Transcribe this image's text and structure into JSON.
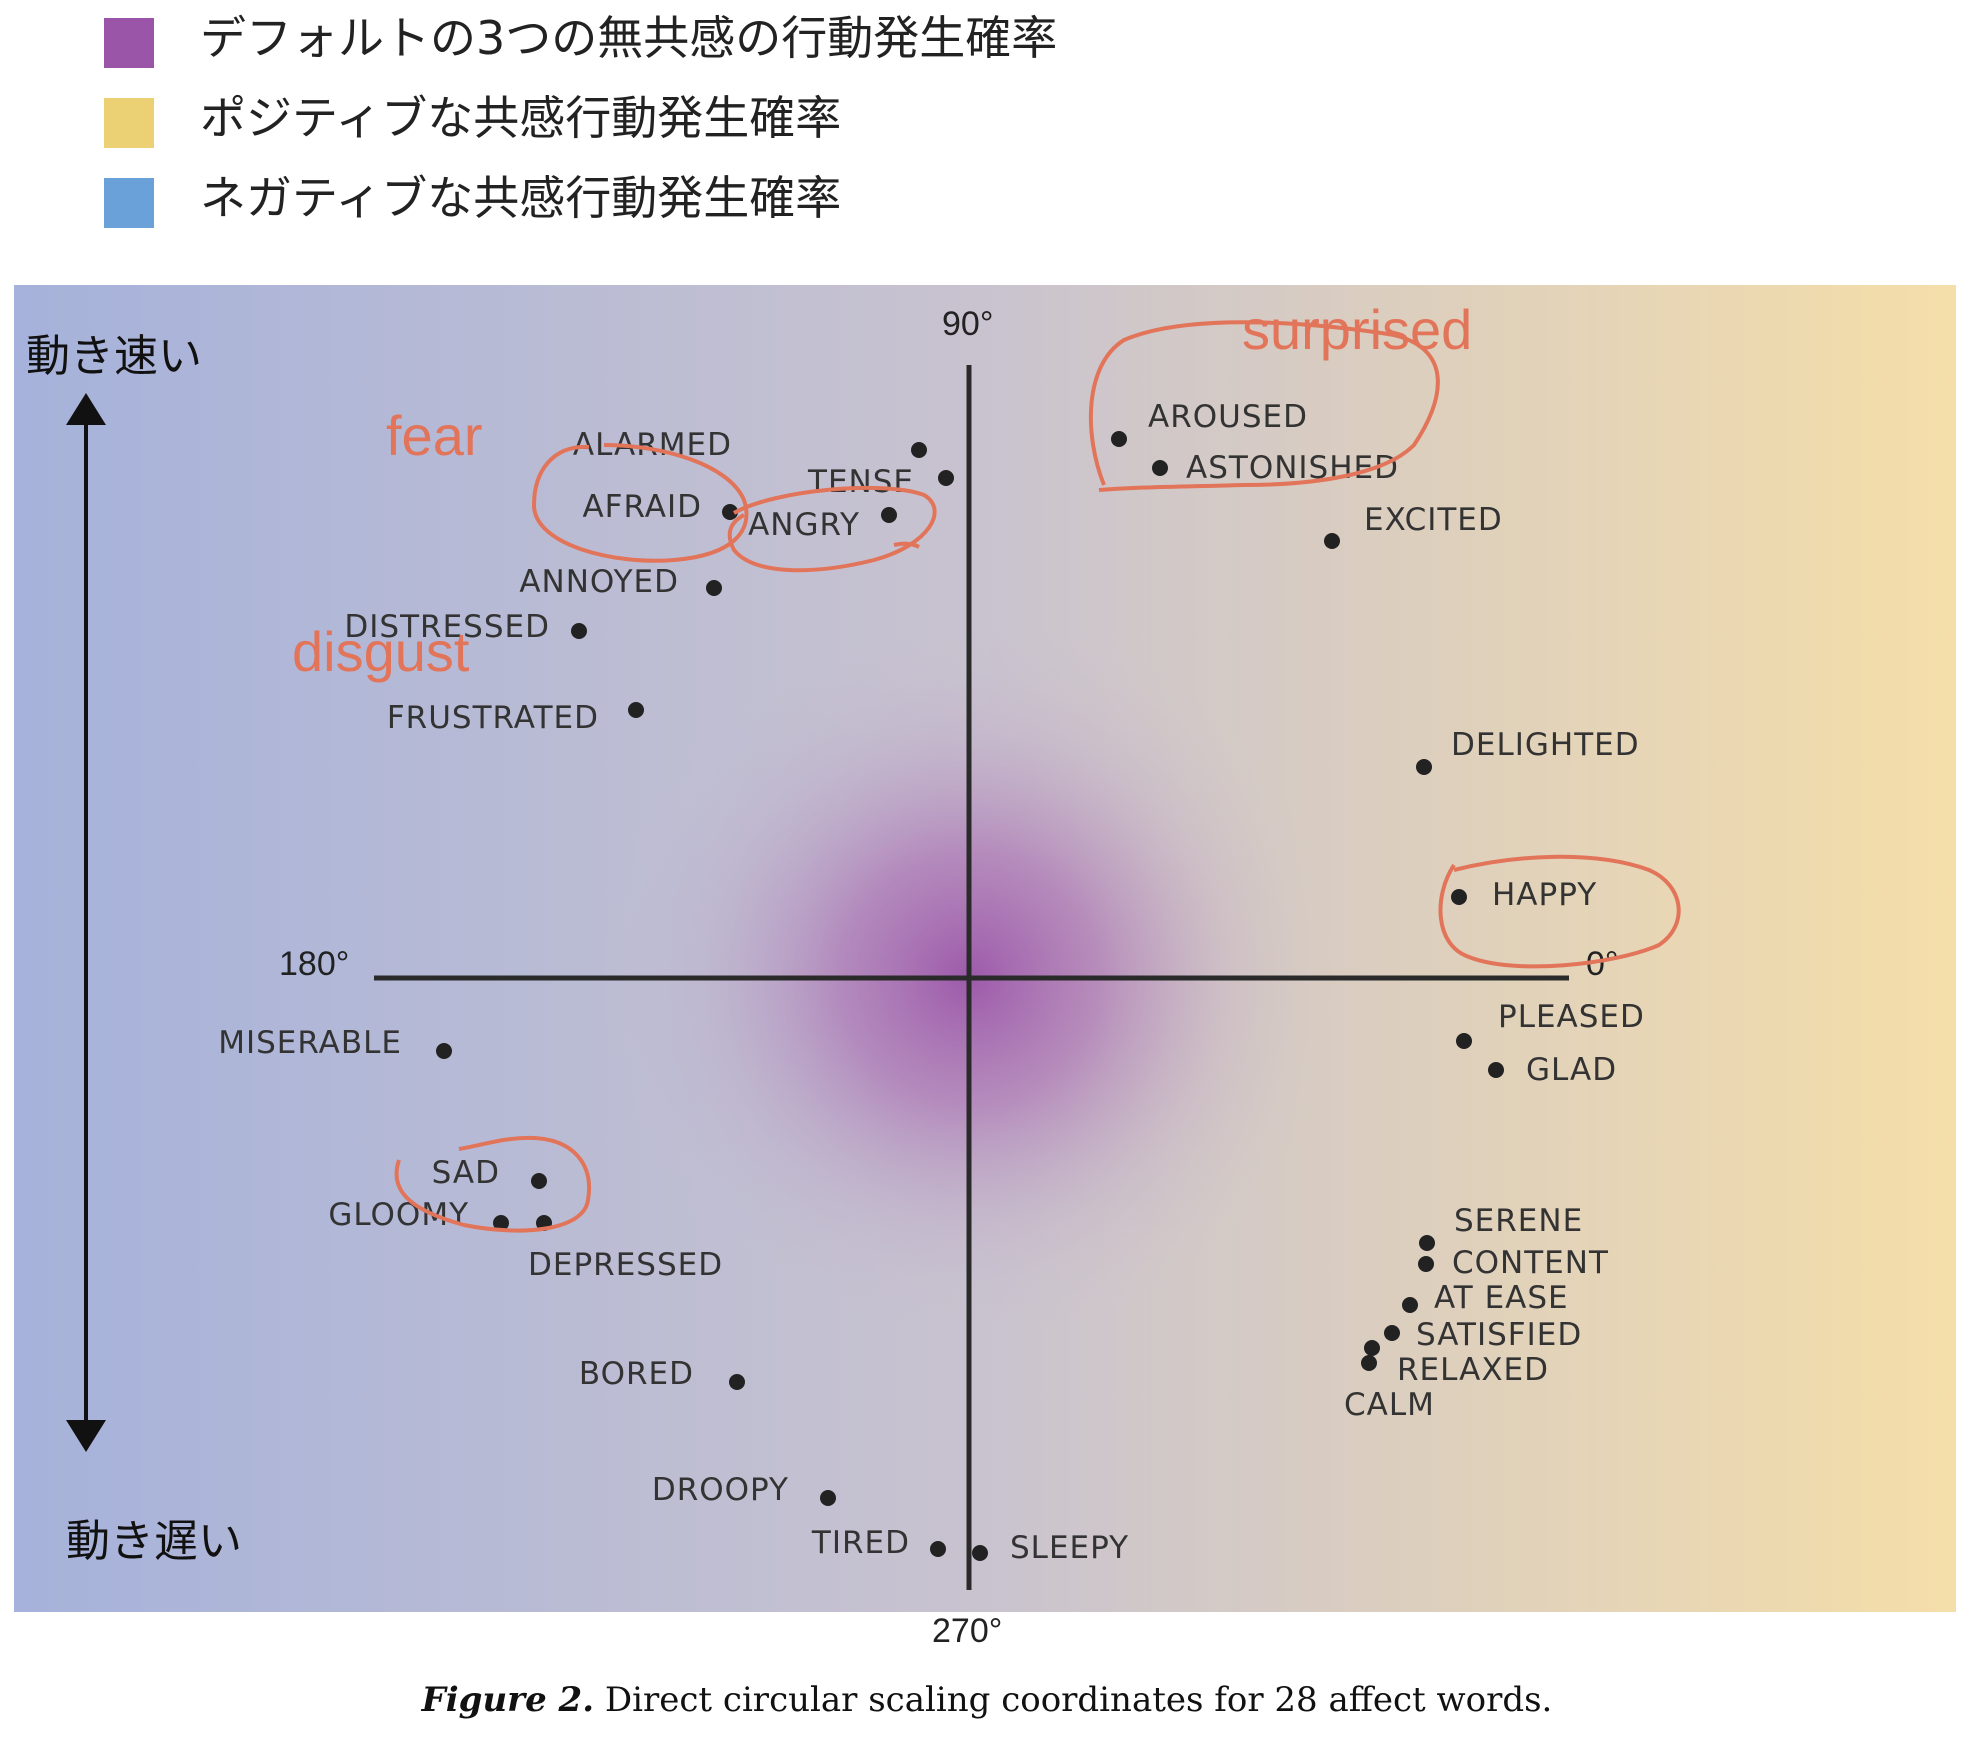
{
  "legend": [
    {
      "label": "デフォルトの3つの無共感の行動発生確率",
      "color": "#9b55a8"
    },
    {
      "label": "ポジティブな共感行動発生確率",
      "color": "#ecd174"
    },
    {
      "label": "ネガティブな共感行動発生確率",
      "color": "#6aa1d8"
    }
  ],
  "speed_axis": {
    "fast": "動き速い",
    "slow": "動き遅い"
  },
  "axes": {
    "top": "90°",
    "left": "180°",
    "right": "0°",
    "bottom": "270°"
  },
  "words": [
    {
      "name": "ALARMED"
    },
    {
      "name": "TENSE"
    },
    {
      "name": "AFRAID"
    },
    {
      "name": "ANGRY"
    },
    {
      "name": "ANNOYED"
    },
    {
      "name": "DISTRESSED"
    },
    {
      "name": "FRUSTRATED"
    },
    {
      "name": "AROUSED"
    },
    {
      "name": "ASTONISHED"
    },
    {
      "name": "EXCITED"
    },
    {
      "name": "DELIGHTED"
    },
    {
      "name": "HAPPY"
    },
    {
      "name": "PLEASED"
    },
    {
      "name": "GLAD"
    },
    {
      "name": "SERENE"
    },
    {
      "name": "CONTENT"
    },
    {
      "name": "AT EASE"
    },
    {
      "name": "SATISFIED"
    },
    {
      "name": "RELAXED"
    },
    {
      "name": "CALM"
    },
    {
      "name": "MISERABLE"
    },
    {
      "name": "SAD"
    },
    {
      "name": "GLOOMY"
    },
    {
      "name": "DEPRESSED"
    },
    {
      "name": "BORED"
    },
    {
      "name": "DROOPY"
    },
    {
      "name": "TIRED"
    },
    {
      "name": "SLEEPY"
    }
  ],
  "annotations": [
    "fear",
    "disgust",
    "surprised"
  ],
  "caption": {
    "prefix": "Figure 2.",
    "text": "Direct circular scaling coordinates for 28 affect words."
  },
  "colors": {
    "annotation": "#e2745a",
    "default_center": "#9b55a8"
  }
}
